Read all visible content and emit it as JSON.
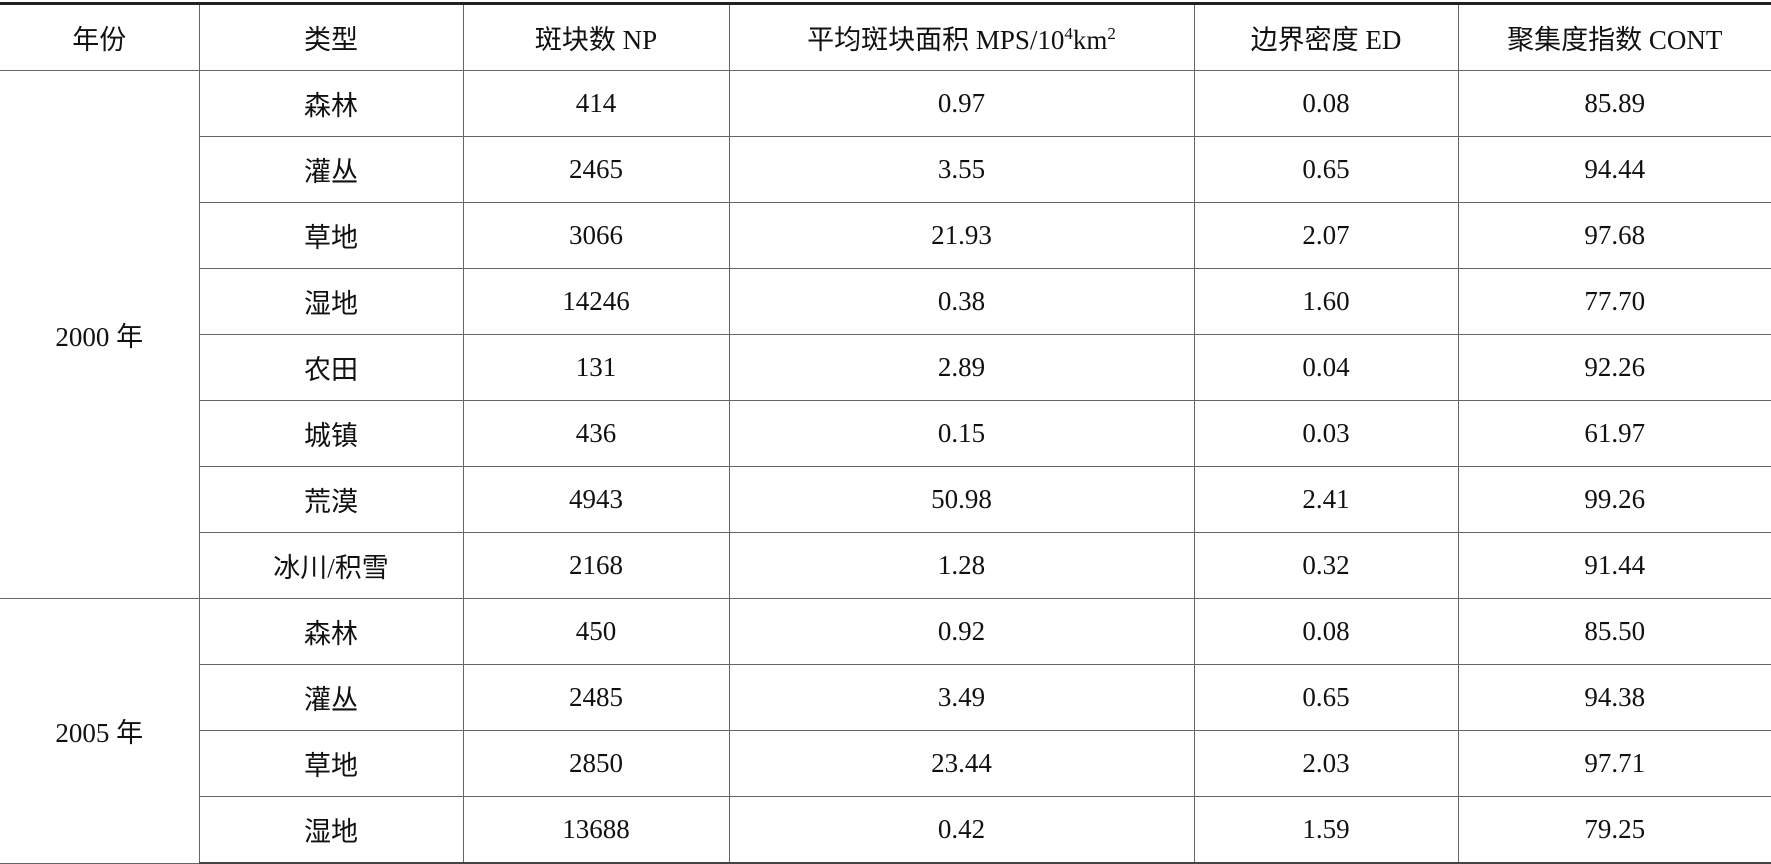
{
  "table": {
    "header": [
      "年份",
      "类型",
      "斑块数 NP",
      [
        "平均斑块面积 MPS/10",
        "4",
        "km",
        "2"
      ],
      "边界密度 ED",
      "聚集度指数 CONT"
    ],
    "groups": [
      {
        "year": "2000 年",
        "rows": [
          [
            "森林",
            "414",
            "0.97",
            "0.08",
            "85.89"
          ],
          [
            "灌丛",
            "2465",
            "3.55",
            "0.65",
            "94.44"
          ],
          [
            "草地",
            "3066",
            "21.93",
            "2.07",
            "97.68"
          ],
          [
            "湿地",
            "14246",
            "0.38",
            "1.60",
            "77.70"
          ],
          [
            "农田",
            "131",
            "2.89",
            "0.04",
            "92.26"
          ],
          [
            "城镇",
            "436",
            "0.15",
            "0.03",
            "61.97"
          ],
          [
            "荒漠",
            "4943",
            "50.98",
            "2.41",
            "99.26"
          ],
          [
            "冰川/积雪",
            "2168",
            "1.28",
            "0.32",
            "91.44"
          ]
        ]
      },
      {
        "year": "2005 年",
        "rows": [
          [
            "森林",
            "450",
            "0.92",
            "0.08",
            "85.50"
          ],
          [
            "灌丛",
            "2485",
            "3.49",
            "0.65",
            "94.38"
          ],
          [
            "草地",
            "2850",
            "23.44",
            "2.03",
            "97.71"
          ],
          [
            "湿地",
            "13688",
            "0.42",
            "1.59",
            "79.25"
          ]
        ]
      }
    ]
  }
}
